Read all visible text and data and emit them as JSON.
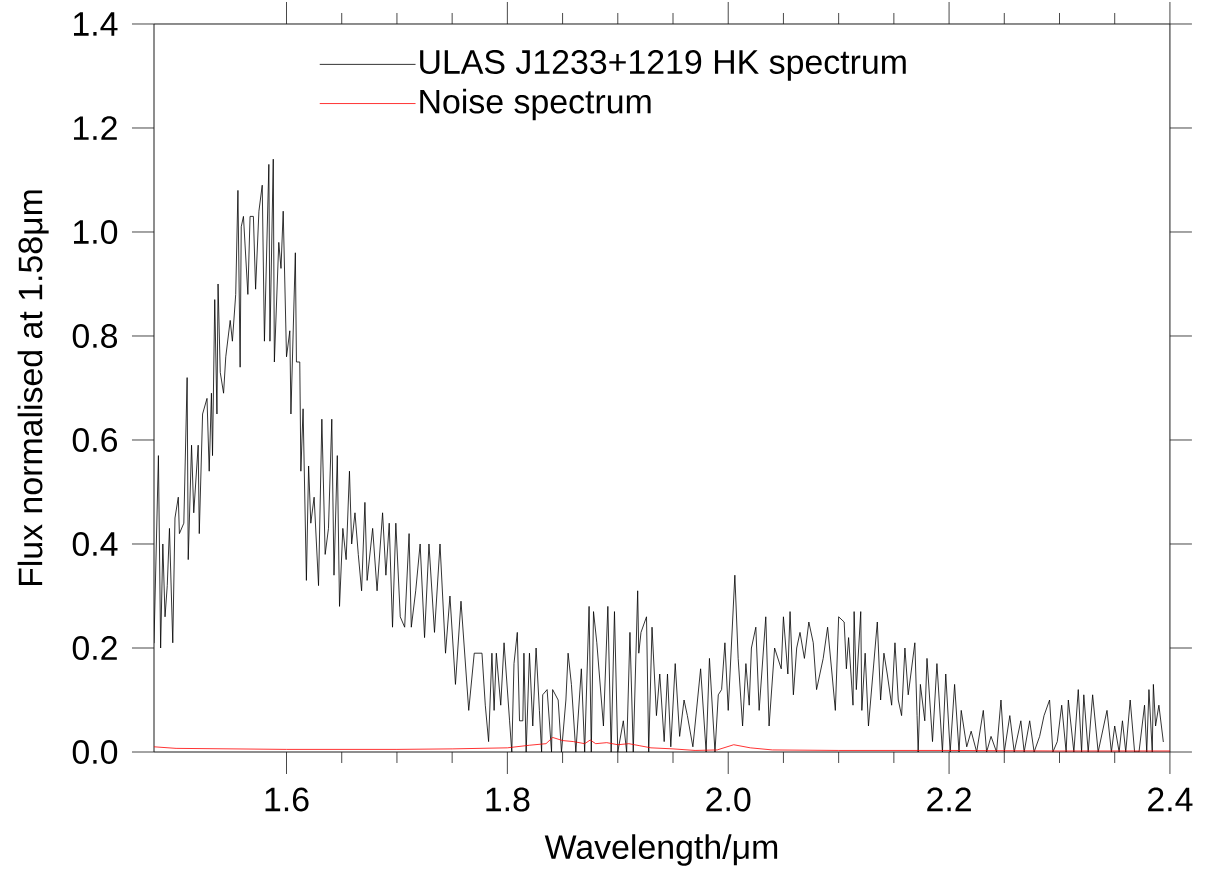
{
  "chart_data": {
    "type": "line",
    "xlabel": "Wavelength/μm",
    "ylabel": "Flux normalised at 1.58μm",
    "xlim": [
      1.48,
      2.4
    ],
    "ylim": [
      0,
      1.4
    ],
    "xticks": [
      {
        "value": 1.6,
        "label": "1.6"
      },
      {
        "value": 1.8,
        "label": "1.8"
      },
      {
        "value": 2.0,
        "label": "2.0"
      },
      {
        "value": 2.2,
        "label": "2.2"
      },
      {
        "value": 2.4,
        "label": "2.4"
      }
    ],
    "yticks": [
      {
        "value": 0,
        "label": "0.0"
      },
      {
        "value": 0.2,
        "label": "0.2"
      },
      {
        "value": 0.4,
        "label": "0.4"
      },
      {
        "value": 0.6,
        "label": "0.6"
      },
      {
        "value": 0.8,
        "label": "0.8"
      },
      {
        "value": 1.0,
        "label": "1.0"
      },
      {
        "value": 1.2,
        "label": "1.2"
      },
      {
        "value": 1.4,
        "label": "1.4"
      }
    ],
    "legend": "top",
    "series": [
      {
        "name": "ULAS J1233+1219 HK spectrum",
        "color": "#000000",
        "x": [
          1.48,
          1.484,
          1.486,
          1.488,
          1.49,
          1.492,
          1.494,
          1.497,
          1.499,
          1.502,
          1.503,
          1.507,
          1.51,
          1.511,
          1.514,
          1.516,
          1.52,
          1.521,
          1.524,
          1.528,
          1.53,
          1.532,
          1.533,
          1.535,
          1.537,
          1.538,
          1.54,
          1.543,
          1.545,
          1.549,
          1.551,
          1.554,
          1.556,
          1.558,
          1.559,
          1.561,
          1.565,
          1.567,
          1.57,
          1.572,
          1.575,
          1.578,
          1.58,
          1.584,
          1.585,
          1.588,
          1.589,
          1.593,
          1.595,
          1.597,
          1.6,
          1.603,
          1.604,
          1.608,
          1.609,
          1.612,
          1.613,
          1.615,
          1.618,
          1.62,
          1.622,
          1.625,
          1.629,
          1.632,
          1.635,
          1.638,
          1.641,
          1.643,
          1.646,
          1.648,
          1.651,
          1.654,
          1.657,
          1.659,
          1.662,
          1.665,
          1.668,
          1.671,
          1.673,
          1.678,
          1.682,
          1.687,
          1.69,
          1.693,
          1.696,
          1.699,
          1.703,
          1.707,
          1.711,
          1.713,
          1.717,
          1.721,
          1.725,
          1.729,
          1.734,
          1.739,
          1.744,
          1.748,
          1.753,
          1.758,
          1.765,
          1.77,
          1.777,
          1.78,
          1.783,
          1.786,
          1.788,
          1.79,
          1.794,
          1.797,
          1.802,
          1.804,
          1.806,
          1.809,
          1.811,
          1.814,
          1.815,
          1.817,
          1.82,
          1.823,
          1.826,
          1.829,
          1.831,
          1.832,
          1.836,
          1.84,
          1.841,
          1.846,
          1.849,
          1.853,
          1.855,
          1.858,
          1.862,
          1.867,
          1.87,
          1.874,
          1.876,
          1.878,
          1.881,
          1.887,
          1.891,
          1.894,
          1.897,
          1.9,
          1.905,
          1.908,
          1.911,
          1.914,
          1.918,
          1.919,
          1.921,
          1.926,
          1.928,
          1.931,
          1.935,
          1.938,
          1.942,
          1.945,
          1.948,
          1.952,
          1.956,
          1.96,
          1.963,
          1.968,
          1.975,
          1.98,
          1.983,
          1.988,
          1.991,
          1.994,
          1.997,
          2.0,
          2.006,
          2.009,
          2.013,
          2.016,
          2.019,
          2.021,
          2.025,
          2.028,
          2.034,
          2.037,
          2.042,
          2.048,
          2.05,
          2.054,
          2.056,
          2.059,
          2.062,
          2.065,
          2.069,
          2.073,
          2.077,
          2.08,
          2.086,
          2.09,
          2.094,
          2.097,
          2.1,
          2.105,
          2.107,
          2.109,
          2.113,
          2.114,
          2.116,
          2.12,
          2.121,
          2.124,
          2.127,
          2.135,
          2.138,
          2.141,
          2.144,
          2.148,
          2.151,
          2.154,
          2.157,
          2.16,
          2.163,
          2.169,
          2.171,
          2.172,
          2.174,
          2.178,
          2.18,
          2.185,
          2.189,
          2.194,
          2.197,
          2.201,
          2.205,
          2.209,
          2.211,
          2.216,
          2.22,
          2.225,
          2.231,
          2.234,
          2.238,
          2.243,
          2.247,
          2.25,
          2.255,
          2.259,
          2.265,
          2.268,
          2.273,
          2.277,
          2.282,
          2.286,
          2.291,
          2.294,
          2.298,
          2.302,
          2.306,
          2.308,
          2.313,
          2.317,
          2.32,
          2.322,
          2.326,
          2.33,
          2.335,
          2.339,
          2.343,
          2.347,
          2.35,
          2.354,
          2.357,
          2.36,
          2.364,
          2.368,
          2.372,
          2.377,
          2.379,
          2.381,
          2.384,
          2.385,
          2.387,
          2.39,
          2.394
        ],
        "values": [
          0.21,
          0.57,
          0.2,
          0.4,
          0.26,
          0.32,
          0.43,
          0.21,
          0.45,
          0.49,
          0.42,
          0.44,
          0.72,
          0.37,
          0.59,
          0.46,
          0.59,
          0.42,
          0.65,
          0.68,
          0.54,
          0.69,
          0.57,
          0.87,
          0.65,
          0.9,
          0.73,
          0.69,
          0.76,
          0.83,
          0.79,
          0.88,
          1.08,
          0.74,
          1.01,
          1.03,
          0.88,
          1.03,
          1.03,
          0.89,
          1.04,
          1.09,
          0.79,
          1.13,
          0.79,
          1.14,
          0.75,
          0.98,
          0.93,
          1.04,
          0.76,
          0.81,
          0.65,
          0.96,
          0.75,
          0.75,
          0.54,
          0.66,
          0.33,
          0.55,
          0.44,
          0.49,
          0.32,
          0.64,
          0.38,
          0.43,
          0.64,
          0.34,
          0.57,
          0.28,
          0.43,
          0.37,
          0.54,
          0.4,
          0.46,
          0.38,
          0.31,
          0.48,
          0.33,
          0.43,
          0.31,
          0.46,
          0.34,
          0.44,
          0.24,
          0.44,
          0.26,
          0.24,
          0.42,
          0.24,
          0.31,
          0.4,
          0.22,
          0.4,
          0.23,
          0.4,
          0.19,
          0.3,
          0.13,
          0.29,
          0.08,
          0.19,
          0.19,
          0.09,
          0.02,
          0.19,
          0.08,
          0.19,
          0.09,
          0.21,
          0.06,
          0.0,
          0.17,
          0.23,
          0.06,
          0.06,
          0.19,
          0.0,
          0.19,
          0.05,
          0.2,
          0.08,
          0.0,
          0.11,
          0.12,
          0.0,
          0.12,
          0.1,
          0.0,
          0.1,
          0.19,
          0.13,
          0.0,
          0.16,
          0.0,
          0.28,
          0.0,
          0.27,
          0.21,
          0.05,
          0.28,
          0.0,
          0.27,
          0.0,
          0.06,
          0.0,
          0.23,
          0.0,
          0.31,
          0.19,
          0.23,
          0.26,
          0.0,
          0.24,
          0.07,
          0.15,
          0.02,
          0.15,
          0.01,
          0.17,
          0.03,
          0.1,
          0.07,
          0.01,
          0.16,
          0.0,
          0.18,
          0.0,
          0.11,
          0.12,
          0.21,
          0.08,
          0.34,
          0.18,
          0.05,
          0.17,
          0.09,
          0.2,
          0.24,
          0.08,
          0.26,
          0.05,
          0.2,
          0.16,
          0.26,
          0.15,
          0.27,
          0.11,
          0.2,
          0.23,
          0.18,
          0.25,
          0.21,
          0.12,
          0.18,
          0.24,
          0.15,
          0.08,
          0.26,
          0.25,
          0.16,
          0.22,
          0.09,
          0.27,
          0.12,
          0.27,
          0.08,
          0.19,
          0.05,
          0.25,
          0.1,
          0.19,
          0.15,
          0.09,
          0.21,
          0.1,
          0.07,
          0.2,
          0.11,
          0.21,
          0.07,
          0.0,
          0.13,
          0.06,
          0.18,
          0.02,
          0.17,
          0.0,
          0.15,
          0.0,
          0.13,
          0.0,
          0.08,
          0.01,
          0.04,
          0.0,
          0.08,
          0.0,
          0.03,
          0.0,
          0.1,
          0.0,
          0.07,
          0.0,
          0.06,
          0.0,
          0.06,
          0.0,
          0.03,
          0.07,
          0.1,
          0.0,
          0.02,
          0.09,
          0.0,
          0.1,
          0.0,
          0.12,
          0.0,
          0.11,
          0.0,
          0.11,
          0.0,
          0.04,
          0.08,
          0.0,
          0.05,
          0.0,
          0.06,
          0.0,
          0.1,
          0.0,
          0.0,
          0.09,
          0.0,
          0.12,
          0.0,
          0.13,
          0.05,
          0.09,
          0.02
        ]
      },
      {
        "name": "Noise spectrum",
        "color": "#ff0000",
        "x": [
          1.48,
          1.5,
          1.6,
          1.7,
          1.75,
          1.8,
          1.82,
          1.835,
          1.841,
          1.85,
          1.86,
          1.87,
          1.875,
          1.88,
          1.89,
          1.9,
          1.91,
          1.92,
          1.93,
          1.95,
          1.97,
          1.99,
          2.005,
          2.02,
          2.04,
          2.1,
          2.2,
          2.3,
          2.4
        ],
        "values": [
          0.01,
          0.007,
          0.005,
          0.005,
          0.006,
          0.008,
          0.013,
          0.016,
          0.028,
          0.022,
          0.02,
          0.016,
          0.023,
          0.016,
          0.018,
          0.014,
          0.016,
          0.012,
          0.008,
          0.006,
          0.003,
          0.004,
          0.014,
          0.008,
          0.004,
          0.003,
          0.003,
          0.002,
          0.002
        ]
      }
    ]
  }
}
